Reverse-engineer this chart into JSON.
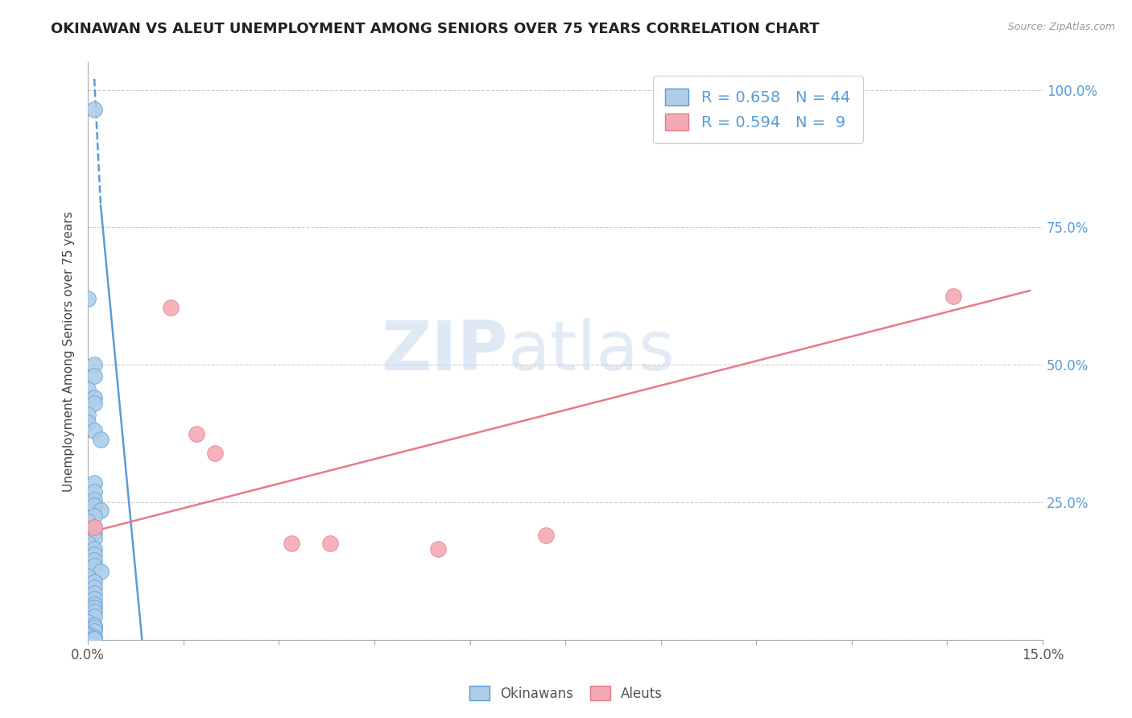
{
  "title": "OKINAWAN VS ALEUT UNEMPLOYMENT AMONG SENIORS OVER 75 YEARS CORRELATION CHART",
  "source": "Source: ZipAtlas.com",
  "ylabel": "Unemployment Among Seniors over 75 years",
  "watermark_zip": "ZIP",
  "watermark_atlas": "atlas",
  "xlim": [
    0.0,
    0.15
  ],
  "ylim": [
    0.0,
    1.05
  ],
  "x_ticks": [
    0.0,
    0.015,
    0.03,
    0.045,
    0.06,
    0.075,
    0.09,
    0.105,
    0.12,
    0.135,
    0.15
  ],
  "x_tick_labels": [
    "0.0%",
    "",
    "",
    "",
    "",
    "",
    "",
    "",
    "",
    "",
    "15.0%"
  ],
  "y_ticks_right": [
    0.0,
    0.25,
    0.5,
    0.75,
    1.0
  ],
  "y_tick_labels_right": [
    "",
    "25.0%",
    "50.0%",
    "75.0%",
    "100.0%"
  ],
  "okinawan_fill": "#aecde8",
  "aleut_fill": "#f4aab4",
  "okinawan_edge": "#5b9bd5",
  "aleut_edge": "#e8798a",
  "r_okinawan": 0.658,
  "n_okinawan": 44,
  "r_aleut": 0.594,
  "n_aleut": 9,
  "okinawan_points": [
    [
      0.001,
      0.965
    ],
    [
      0.0,
      0.62
    ],
    [
      0.001,
      0.5
    ],
    [
      0.001,
      0.48
    ],
    [
      0.0,
      0.455
    ],
    [
      0.001,
      0.44
    ],
    [
      0.001,
      0.43
    ],
    [
      0.0,
      0.41
    ],
    [
      0.0,
      0.395
    ],
    [
      0.001,
      0.38
    ],
    [
      0.002,
      0.365
    ],
    [
      0.001,
      0.285
    ],
    [
      0.001,
      0.27
    ],
    [
      0.001,
      0.255
    ],
    [
      0.001,
      0.245
    ],
    [
      0.002,
      0.235
    ],
    [
      0.001,
      0.225
    ],
    [
      0.0,
      0.215
    ],
    [
      0.001,
      0.205
    ],
    [
      0.001,
      0.195
    ],
    [
      0.001,
      0.185
    ],
    [
      0.0,
      0.175
    ],
    [
      0.001,
      0.165
    ],
    [
      0.001,
      0.155
    ],
    [
      0.001,
      0.145
    ],
    [
      0.001,
      0.135
    ],
    [
      0.002,
      0.125
    ],
    [
      0.0,
      0.115
    ],
    [
      0.001,
      0.105
    ],
    [
      0.001,
      0.095
    ],
    [
      0.001,
      0.085
    ],
    [
      0.001,
      0.075
    ],
    [
      0.001,
      0.065
    ],
    [
      0.001,
      0.058
    ],
    [
      0.001,
      0.052
    ],
    [
      0.001,
      0.042
    ],
    [
      0.0,
      0.032
    ],
    [
      0.001,
      0.026
    ],
    [
      0.001,
      0.022
    ],
    [
      0.001,
      0.016
    ],
    [
      0.0,
      0.01
    ],
    [
      0.0,
      0.008
    ],
    [
      0.001,
      0.005
    ],
    [
      0.001,
      0.002
    ]
  ],
  "aleut_points": [
    [
      0.001,
      0.205
    ],
    [
      0.013,
      0.605
    ],
    [
      0.017,
      0.375
    ],
    [
      0.02,
      0.34
    ],
    [
      0.032,
      0.175
    ],
    [
      0.038,
      0.175
    ],
    [
      0.055,
      0.165
    ],
    [
      0.072,
      0.19
    ],
    [
      0.136,
      0.625
    ]
  ],
  "okinawan_trendline_dashed": [
    [
      0.001,
      1.02
    ],
    [
      0.002,
      0.79
    ]
  ],
  "okinawan_trendline_solid": [
    [
      0.002,
      0.79
    ],
    [
      0.0085,
      0.0
    ]
  ],
  "aleut_trendline": [
    [
      0.0,
      0.195
    ],
    [
      0.148,
      0.635
    ]
  ]
}
